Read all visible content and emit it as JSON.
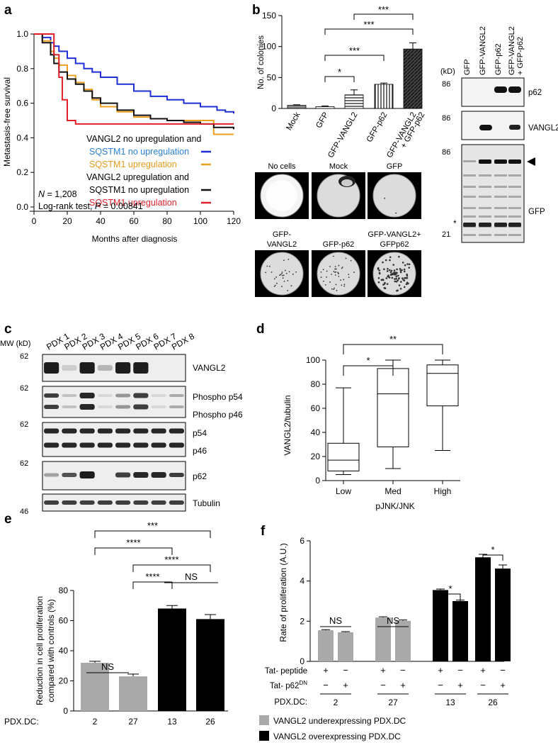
{
  "panel_labels": {
    "a": "a",
    "b": "b",
    "c": "c",
    "d": "d",
    "e": "e",
    "f": "f"
  },
  "panel_a": {
    "ylabel": "Metastasis-free survival",
    "xlabel": "Months after diagnosis",
    "legend": {
      "line1": "VANGL2 no upregulation and",
      "line2": "SQSTM1 no upregulation",
      "line3": "SQSTM1 upregulation",
      "line4": "VANGL2 upregulation and",
      "line5": "SQSTM1 no upregulation",
      "line6": "SQSTM1 upregulation"
    },
    "n_label": "N",
    "n_value": " = 1,208",
    "stat_prefix": "Log-rank test, ",
    "stat_p": "P",
    "stat_value": " = 0.00841",
    "colors": {
      "blue": "#1f2fd6",
      "orange": "#f0a020",
      "black": "#111111",
      "red": "#e0202a",
      "blue_text": "#2a7fd4",
      "orange_text": "#e89a1a",
      "red_text": "#e0202a"
    }
  },
  "panel_b": {
    "ylabel": "No. of colonies",
    "blot_headers": [
      "GFP",
      "GFP-VANGL2",
      "GFP-p62",
      "GFP-VANGL2",
      "+ GFP-p62"
    ],
    "blot_kd": "(kD)",
    "blot_markers": {
      "m1": "86",
      "m2": "86",
      "m3": "86",
      "m4": "21"
    },
    "blot_labels": {
      "p62": "p62",
      "vangl2": "VANGL2",
      "gfp": "GFP",
      "star": "*"
    },
    "dish_labels": [
      "No cells",
      "Mock",
      "GFP",
      "GFP-",
      "VANGL2",
      "GFP-p62",
      "GFP-VANGL2+",
      "GFPp62"
    ],
    "sig": [
      "*",
      "***",
      "***",
      "***"
    ]
  },
  "panel_c": {
    "mw_label": "MW (kD)",
    "lanes": [
      "PDX 1",
      "PDX 2",
      "PDX 3",
      "PDX 4",
      "PDX 5",
      "PDX 6",
      "PDX 7",
      "PDX 8"
    ],
    "markers": [
      "62",
      "62",
      "62",
      "62",
      "46"
    ],
    "labels": [
      "VANGL2",
      "Phospho p54",
      "Phospho p46",
      "p54",
      "p46",
      "p62",
      "Tubulin"
    ]
  },
  "panel_d": {
    "ylabel": "VANGL2/tubulin",
    "xlabel": "pJNK/JNK",
    "sig": [
      "*",
      "**"
    ]
  },
  "panel_e": {
    "ylabel1": "Reduction in cell proliferation",
    "ylabel2": "compared with controls (%)",
    "row_label": "PDX.DC:",
    "sig": [
      "***",
      "****",
      "****",
      "****",
      "NS",
      "NS"
    ]
  },
  "panel_f": {
    "ylabel": "Rate of proliferation (A.U.)",
    "row1": "Tat- peptide",
    "row2": "Tat- p62",
    "row2_sup": "DN",
    "row3": "PDX.DC:",
    "row1_signs": [
      "+",
      "−",
      "+",
      "−",
      "+",
      "−",
      "+",
      "−"
    ],
    "row2_signs": [
      "−",
      "+",
      "−",
      "+",
      "−",
      "+",
      "−",
      "+"
    ],
    "groups": [
      "2",
      "27",
      "13",
      "26"
    ],
    "sig": [
      "NS",
      "NS",
      "*",
      "*"
    ]
  },
  "legend": {
    "gray": "VANGL2 underexpressing PDX.DC",
    "black": "VANGL2 overexpressing PDX.DC",
    "gray_color": "#a9a9a9",
    "black_color": "#000000"
  },
  "chart_data": [
    {
      "panel": "a",
      "type": "line",
      "xlabel": "Months after diagnosis",
      "ylabel": "Metastasis-free survival",
      "xlim": [
        0,
        120
      ],
      "ylim": [
        0,
        1.0
      ],
      "xticks": [
        0,
        20,
        40,
        60,
        80,
        100,
        120
      ],
      "yticks": [
        0.0,
        0.2,
        0.4,
        0.6,
        0.8,
        1.0
      ],
      "series": [
        {
          "color": "#1f2fd6",
          "x": [
            0,
            5,
            10,
            12,
            15,
            20,
            25,
            30,
            35,
            40,
            50,
            60,
            70,
            80,
            90,
            100,
            110,
            115,
            120
          ],
          "y": [
            1.0,
            0.98,
            0.95,
            0.93,
            0.9,
            0.86,
            0.83,
            0.8,
            0.78,
            0.75,
            0.71,
            0.67,
            0.64,
            0.62,
            0.6,
            0.58,
            0.56,
            0.55,
            0.54
          ]
        },
        {
          "color": "#f0a020",
          "x": [
            0,
            5,
            10,
            12,
            15,
            20,
            25,
            30,
            35,
            40,
            50,
            60,
            70,
            80,
            90,
            100,
            107,
            108,
            120
          ],
          "y": [
            1.0,
            0.96,
            0.9,
            0.86,
            0.82,
            0.76,
            0.72,
            0.68,
            0.62,
            0.58,
            0.55,
            0.52,
            0.51,
            0.5,
            0.5,
            0.5,
            0.5,
            0.42,
            0.42
          ]
        },
        {
          "color": "#111111",
          "x": [
            0,
            5,
            10,
            12,
            15,
            20,
            25,
            30,
            35,
            40,
            50,
            60,
            70,
            80,
            90,
            100,
            107,
            108,
            115,
            120
          ],
          "y": [
            1.0,
            0.95,
            0.88,
            0.83,
            0.78,
            0.74,
            0.71,
            0.67,
            0.63,
            0.6,
            0.56,
            0.53,
            0.51,
            0.5,
            0.49,
            0.48,
            0.48,
            0.46,
            0.46,
            0.45
          ]
        },
        {
          "color": "#e0202a",
          "x": [
            0,
            10,
            12,
            15,
            17,
            20,
            25,
            120
          ],
          "y": [
            1.0,
            1.0,
            0.88,
            0.75,
            0.62,
            0.5,
            0.48,
            0.48
          ]
        }
      ]
    },
    {
      "panel": "b",
      "type": "bar",
      "ylabel": "No. of colonies",
      "categories": [
        "Mock",
        "GFP",
        "GFP-VANGL2",
        "GFP-p62",
        "GFP-VANGL2 + GFP-p62"
      ],
      "values": [
        5,
        3,
        22,
        39,
        96
      ],
      "errors": [
        1,
        1,
        8,
        2,
        10
      ],
      "ylim": [
        0,
        150
      ],
      "yticks": [
        0,
        50,
        100,
        150
      ]
    },
    {
      "panel": "d",
      "type": "box",
      "xlabel": "pJNK/JNK",
      "ylabel": "VANGL2/tubulin",
      "categories": [
        "Low",
        "Med",
        "High"
      ],
      "min": [
        5,
        10,
        25
      ],
      "q1": [
        8,
        28,
        62
      ],
      "median": [
        17,
        72,
        89
      ],
      "q3": [
        31,
        93,
        96
      ],
      "max": [
        77,
        100,
        100
      ],
      "ylim": [
        0,
        100
      ],
      "yticks": [
        0,
        20,
        40,
        60,
        80,
        100
      ]
    },
    {
      "panel": "e",
      "type": "bar",
      "ylabel": "Reduction in cell proliferation compared with controls (%)",
      "categories": [
        "2",
        "27",
        "13",
        "26"
      ],
      "values": [
        32,
        23,
        68,
        61
      ],
      "errors": [
        1,
        1.5,
        2,
        3
      ],
      "colors": [
        "#a9a9a9",
        "#a9a9a9",
        "#000000",
        "#000000"
      ],
      "ylim": [
        0,
        80
      ],
      "yticks": [
        0,
        20,
        40,
        60,
        80
      ]
    },
    {
      "panel": "f",
      "type": "bar",
      "ylabel": "Rate of proliferation (A.U.)",
      "categories": [
        "2",
        "2",
        "27",
        "27",
        "13",
        "13",
        "26",
        "26"
      ],
      "values": [
        1.55,
        1.45,
        2.18,
        2.02,
        3.55,
        3.0,
        5.18,
        4.62
      ],
      "errors": [
        0.03,
        0.03,
        0.04,
        0.04,
        0.05,
        0.05,
        0.15,
        0.18
      ],
      "colors": [
        "#a9a9a9",
        "#a9a9a9",
        "#a9a9a9",
        "#a9a9a9",
        "#000000",
        "#000000",
        "#000000",
        "#000000"
      ],
      "ylim": [
        0,
        6
      ],
      "yticks": [
        0,
        2,
        4,
        6
      ]
    }
  ]
}
